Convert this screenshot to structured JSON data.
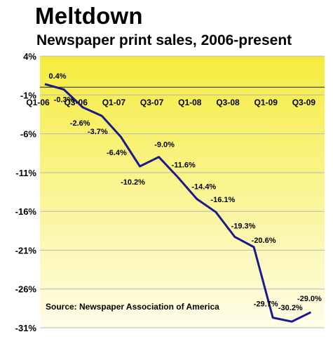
{
  "header": {
    "title": "Meltdown",
    "subtitle": "Newspaper print sales, 2006-present"
  },
  "source": "Source: Newspaper Association of America",
  "colors": {
    "line": "#1a1a8c",
    "bg_top": "#f5ec3e",
    "bg_bottom": "#fffde8",
    "grid": "#b8b8b8"
  },
  "chart_data": {
    "type": "line",
    "title": "Meltdown",
    "subtitle": "Newspaper print sales, 2006-present",
    "ylim": [
      -31,
      4
    ],
    "y_ticks": [
      "4%",
      "-1%",
      "-6%",
      "-11%",
      "-16%",
      "-21%",
      "-26%",
      "-31%"
    ],
    "y_tick_values": [
      4,
      -1,
      -6,
      -11,
      -16,
      -21,
      -26,
      -31
    ],
    "x_tick_labels": [
      "Q1-06",
      "Q3-06",
      "Q1-07",
      "Q3-07",
      "Q1-08",
      "Q3-08",
      "Q1-09",
      "Q3-09"
    ],
    "grid": true,
    "series": [
      {
        "x": [
          "Q1-06",
          "Q2-06",
          "Q3-06",
          "Q4-06",
          "Q1-07",
          "Q2-07",
          "Q3-07",
          "Q4-07",
          "Q1-08",
          "Q2-08",
          "Q3-08",
          "Q4-08",
          "Q1-09",
          "Q2-09",
          "Q3-09"
        ],
        "values": [
          0.4,
          -0.3,
          -2.6,
          -3.7,
          -6.4,
          -10.2,
          -9.0,
          -11.6,
          -14.4,
          -16.1,
          -19.3,
          -20.6,
          -29.7,
          -30.2,
          -29.0
        ],
        "labels": [
          "0.4%",
          "-0.3%",
          "-2.6%",
          "-3.7%",
          "-6.4%",
          "-10.2%",
          "-9.0%",
          "-11.6%",
          "-14.4%",
          "-16.1%",
          "-19.3%",
          "-20.6%",
          "-29.7%",
          "-30.2%",
          "-29.0%"
        ]
      }
    ]
  }
}
